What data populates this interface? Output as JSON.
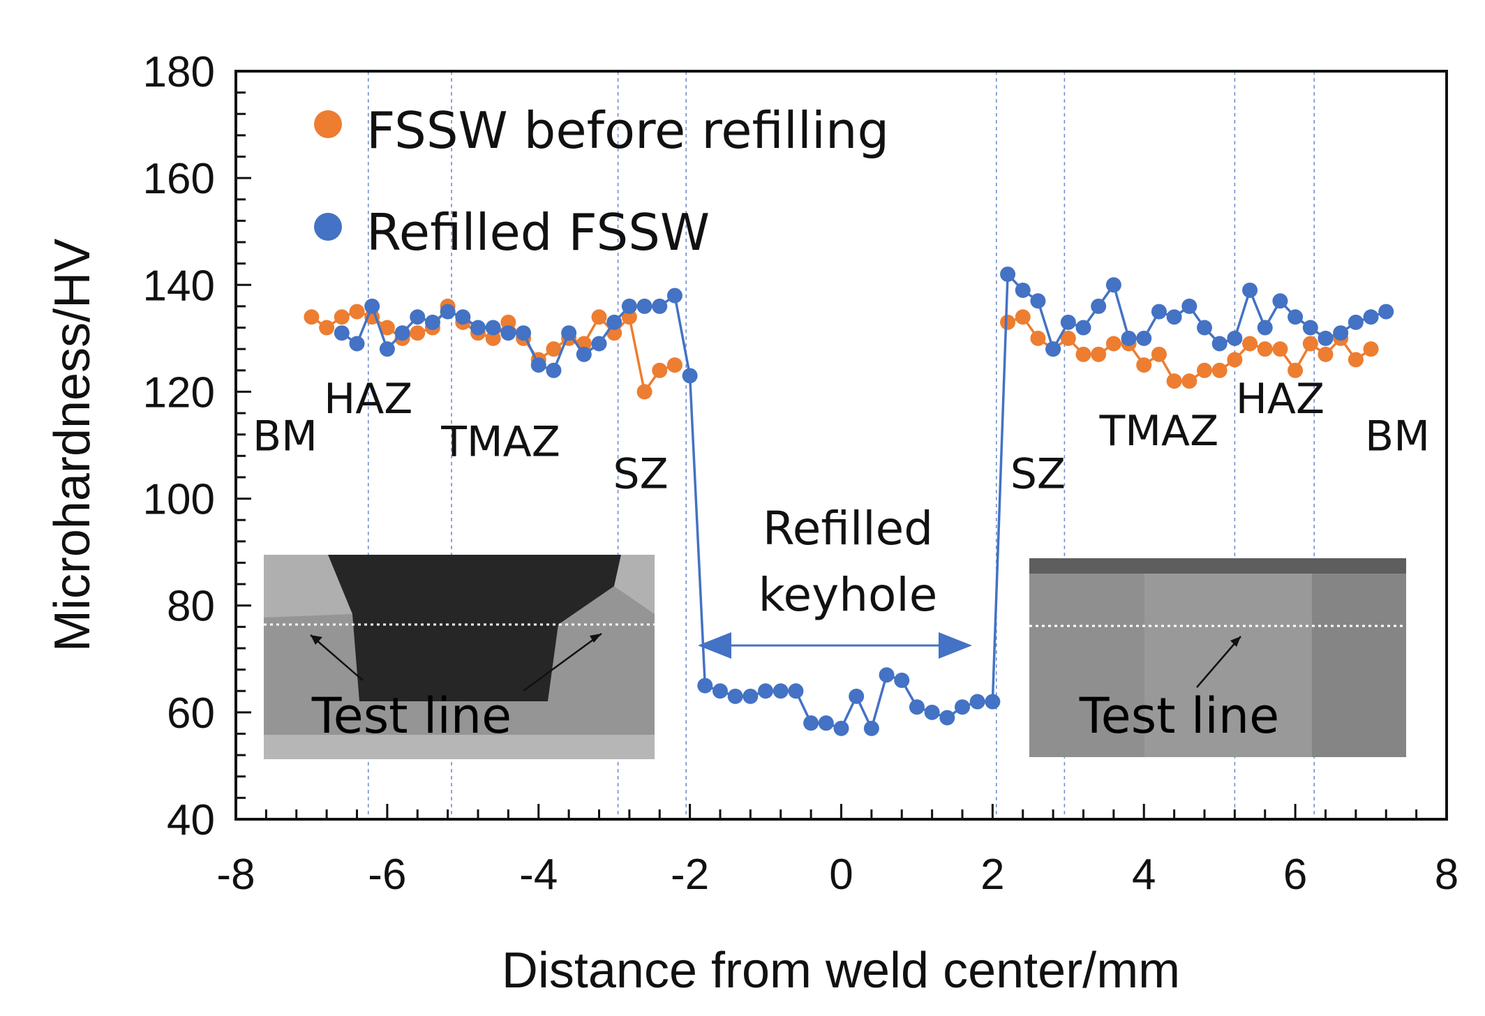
{
  "chart_data": {
    "type": "scatter",
    "xlabel": "Distance from weld center/mm",
    "ylabel": "Microhardness/HV",
    "xlim": [
      -8,
      8
    ],
    "ylim": [
      40,
      180
    ],
    "xticks": [
      -8,
      -6,
      -4,
      -2,
      0,
      2,
      4,
      6,
      8
    ],
    "yticks": [
      40,
      60,
      80,
      100,
      120,
      140,
      160,
      180
    ],
    "legend_position": "top-left",
    "colors": {
      "orange": "#ED7D31",
      "blue": "#4472C4"
    },
    "series": [
      {
        "name": "FSSW before refilling",
        "color": "#ED7D31",
        "points": [
          [
            -7.0,
            134
          ],
          [
            -6.8,
            132
          ],
          [
            -6.6,
            134
          ],
          [
            -6.4,
            135
          ],
          [
            -6.2,
            134
          ],
          [
            -6.0,
            132
          ],
          [
            -5.8,
            130
          ],
          [
            -5.6,
            131
          ],
          [
            -5.4,
            132
          ],
          [
            -5.2,
            136
          ],
          [
            -5.0,
            133
          ],
          [
            -4.8,
            131
          ],
          [
            -4.6,
            130
          ],
          [
            -4.4,
            133
          ],
          [
            -4.2,
            130
          ],
          [
            -4.0,
            126
          ],
          [
            -3.8,
            128
          ],
          [
            -3.6,
            130
          ],
          [
            -3.4,
            129
          ],
          [
            -3.2,
            134
          ],
          [
            -3.0,
            131
          ],
          [
            -2.8,
            134
          ],
          [
            -2.6,
            120
          ],
          [
            -2.4,
            124
          ],
          [
            -2.2,
            125
          ],
          [
            2.2,
            133
          ],
          [
            2.4,
            134
          ],
          [
            2.6,
            130
          ],
          [
            2.8,
            128
          ],
          [
            3.0,
            130
          ],
          [
            3.2,
            127
          ],
          [
            3.4,
            127
          ],
          [
            3.6,
            129
          ],
          [
            3.8,
            129
          ],
          [
            4.0,
            125
          ],
          [
            4.2,
            127
          ],
          [
            4.4,
            122
          ],
          [
            4.6,
            122
          ],
          [
            4.8,
            124
          ],
          [
            5.0,
            124
          ],
          [
            5.2,
            126
          ],
          [
            5.4,
            129
          ],
          [
            5.6,
            128
          ],
          [
            5.8,
            128
          ],
          [
            6.0,
            124
          ],
          [
            6.2,
            129
          ],
          [
            6.4,
            127
          ],
          [
            6.6,
            130
          ],
          [
            6.8,
            126
          ],
          [
            7.0,
            128
          ]
        ]
      },
      {
        "name": "Refilled FSSW",
        "color": "#4472C4",
        "points": [
          [
            -6.6,
            131
          ],
          [
            -6.4,
            129
          ],
          [
            -6.2,
            136
          ],
          [
            -6.0,
            128
          ],
          [
            -5.8,
            131
          ],
          [
            -5.6,
            134
          ],
          [
            -5.4,
            133
          ],
          [
            -5.2,
            135
          ],
          [
            -5.0,
            134
          ],
          [
            -4.8,
            132
          ],
          [
            -4.6,
            132
          ],
          [
            -4.4,
            131
          ],
          [
            -4.2,
            131
          ],
          [
            -4.0,
            125
          ],
          [
            -3.8,
            124
          ],
          [
            -3.6,
            131
          ],
          [
            -3.4,
            127
          ],
          [
            -3.2,
            129
          ],
          [
            -3.0,
            133
          ],
          [
            -2.8,
            136
          ],
          [
            -2.6,
            136
          ],
          [
            -2.4,
            136
          ],
          [
            -2.2,
            138
          ],
          [
            -2.0,
            123
          ],
          [
            -1.8,
            65
          ],
          [
            -1.6,
            64
          ],
          [
            -1.4,
            63
          ],
          [
            -1.2,
            63
          ],
          [
            -1.0,
            64
          ],
          [
            -0.8,
            64
          ],
          [
            -0.6,
            64
          ],
          [
            -0.4,
            58
          ],
          [
            -0.2,
            58
          ],
          [
            0.0,
            57
          ],
          [
            0.2,
            63
          ],
          [
            0.4,
            57
          ],
          [
            0.6,
            67
          ],
          [
            0.8,
            66
          ],
          [
            1.0,
            61
          ],
          [
            1.2,
            60
          ],
          [
            1.4,
            59
          ],
          [
            1.6,
            61
          ],
          [
            1.8,
            62
          ],
          [
            2.0,
            62
          ],
          [
            2.2,
            142
          ],
          [
            2.4,
            139
          ],
          [
            2.6,
            137
          ],
          [
            2.8,
            128
          ],
          [
            3.0,
            133
          ],
          [
            3.2,
            132
          ],
          [
            3.4,
            136
          ],
          [
            3.6,
            140
          ],
          [
            3.8,
            130
          ],
          [
            4.0,
            130
          ],
          [
            4.2,
            135
          ],
          [
            4.4,
            134
          ],
          [
            4.6,
            136
          ],
          [
            4.8,
            132
          ],
          [
            5.0,
            129
          ],
          [
            5.2,
            130
          ],
          [
            5.4,
            139
          ],
          [
            5.6,
            132
          ],
          [
            5.8,
            137
          ],
          [
            6.0,
            134
          ],
          [
            6.2,
            132
          ],
          [
            6.4,
            130
          ],
          [
            6.6,
            131
          ],
          [
            6.8,
            133
          ],
          [
            7.0,
            134
          ],
          [
            7.2,
            135
          ]
        ]
      }
    ],
    "zone_boundaries": [
      -6.25,
      -5.15,
      -2.95,
      -2.05,
      2.05,
      2.95,
      5.2,
      6.25
    ],
    "zone_labels": [
      {
        "text": "BM",
        "x": -7.35,
        "y": 109
      },
      {
        "text": "HAZ",
        "x": -6.25,
        "y": 116
      },
      {
        "text": "TMAZ",
        "x": -4.5,
        "y": 108
      },
      {
        "text": "SZ",
        "x": -2.65,
        "y": 102
      },
      {
        "text": "SZ",
        "x": 2.6,
        "y": 102
      },
      {
        "text": "TMAZ",
        "x": 4.2,
        "y": 110
      },
      {
        "text": "HAZ",
        "x": 5.8,
        "y": 116
      },
      {
        "text": "BM",
        "x": 7.35,
        "y": 109
      }
    ],
    "annotations": {
      "keyhole_line1": "Refilled",
      "keyhole_line2": "keyhole",
      "inset_left_label": "Test line",
      "inset_right_label": "Test line"
    }
  }
}
